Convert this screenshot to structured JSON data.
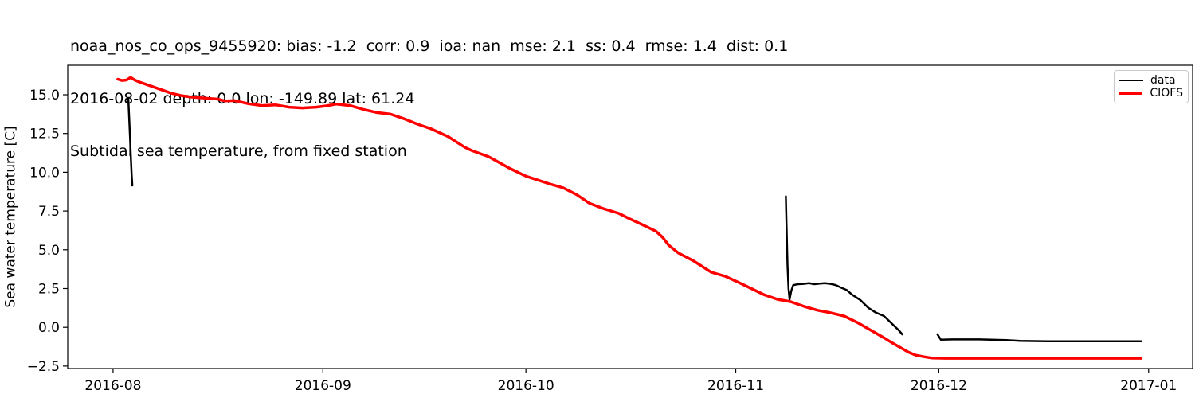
{
  "figure": {
    "title_line1": "noaa_nos_co_ops_9455920: bias: -1.2  corr: 0.9  ioa: nan  mse: 2.1  ss: 0.4  rmse: 1.4  dist: 0.1",
    "title_line2": "2016-08-02 depth: 0.0 lon: -149.89 lat: 61.24",
    "title_line3": "Subtidal sea temperature, from fixed station"
  },
  "chart_data": {
    "type": "line",
    "title": "noaa_nos_co_ops_9455920: bias: -1.2  corr: 0.9  ioa: nan  mse: 2.1  ss: 0.4  rmse: 1.4  dist: 0.1",
    "subtitle": "2016-08-02 depth: 0.0 lon: -149.89 lat: 61.24",
    "subtitle2": "Subtidal sea temperature, from fixed station",
    "xlabel": "",
    "ylabel": "Sea water temperature [C]",
    "grid": false,
    "x_unit": "days since 2016-08-01",
    "xlim_days": [
      -6.7,
      159.5
    ],
    "ylim": [
      -2.66,
      16.9
    ],
    "x_ticks": [
      {
        "label": "2016-08",
        "day": 0
      },
      {
        "label": "2016-09",
        "day": 31
      },
      {
        "label": "2016-10",
        "day": 61
      },
      {
        "label": "2016-11",
        "day": 92
      },
      {
        "label": "2016-12",
        "day": 122
      },
      {
        "label": "2017-01",
        "day": 153
      }
    ],
    "y_ticks": [
      {
        "value": -2.5,
        "label": "−2.5"
      },
      {
        "value": 0.0,
        "label": "0.0"
      },
      {
        "value": 2.5,
        "label": "2.5"
      },
      {
        "value": 5.0,
        "label": "5.0"
      },
      {
        "value": 7.5,
        "label": "7.5"
      },
      {
        "value": 10.0,
        "label": "10.0"
      },
      {
        "value": 12.5,
        "label": "12.5"
      },
      {
        "value": 15.0,
        "label": "15.0"
      }
    ],
    "legend": {
      "position": "upper right",
      "entries": [
        {
          "label": "data",
          "color": "#000000"
        },
        {
          "label": "CIOFS",
          "color": "#ff0000"
        }
      ]
    },
    "series": [
      {
        "name": "data",
        "color": "#000000",
        "line_width": 2.5,
        "segments": [
          [
            [
              2.25,
              14.8
            ],
            [
              2.35,
              13.8
            ],
            [
              2.5,
              12.3
            ],
            [
              2.65,
              10.8
            ],
            [
              2.75,
              9.8
            ],
            [
              2.85,
              9.15
            ]
          ],
          [
            [
              99.4,
              8.45
            ],
            [
              99.5,
              6.5
            ],
            [
              99.65,
              4.0
            ],
            [
              99.8,
              2.5
            ],
            [
              99.95,
              1.8
            ],
            [
              100.2,
              2.35
            ],
            [
              100.5,
              2.72
            ],
            [
              101.2,
              2.78
            ],
            [
              102,
              2.8
            ],
            [
              102.8,
              2.85
            ],
            [
              103.6,
              2.78
            ],
            [
              104.4,
              2.82
            ],
            [
              105.2,
              2.85
            ],
            [
              106,
              2.8
            ],
            [
              106.8,
              2.72
            ],
            [
              107.6,
              2.55
            ],
            [
              108.4,
              2.4
            ],
            [
              109.2,
              2.1
            ],
            [
              110.4,
              1.76
            ],
            [
              111.6,
              1.25
            ],
            [
              112.7,
              0.95
            ],
            [
              113.9,
              0.73
            ],
            [
              115.1,
              0.22
            ],
            [
              116,
              -0.15
            ],
            [
              116.6,
              -0.45
            ]
          ],
          [
            [
              121.8,
              -0.45
            ],
            [
              122.3,
              -0.8
            ],
            [
              124,
              -0.78
            ],
            [
              128,
              -0.78
            ],
            [
              132,
              -0.82
            ],
            [
              134,
              -0.88
            ],
            [
              138,
              -0.9
            ],
            [
              145,
              -0.9
            ],
            [
              151.9,
              -0.9
            ]
          ]
        ]
      },
      {
        "name": "CIOFS",
        "color": "#ff0000",
        "line_width": 3.5,
        "segments": [
          [
            [
              0.7,
              16.0
            ],
            [
              1.3,
              15.92
            ],
            [
              2.0,
              15.95
            ],
            [
              2.6,
              16.12
            ],
            [
              3.2,
              15.95
            ],
            [
              4,
              15.8
            ],
            [
              5,
              15.65
            ],
            [
              6,
              15.5
            ],
            [
              7.3,
              15.3
            ],
            [
              8.6,
              15.1
            ],
            [
              10,
              14.95
            ],
            [
              11.5,
              14.85
            ],
            [
              13,
              14.8
            ],
            [
              14.5,
              14.75
            ],
            [
              15.5,
              14.72
            ],
            [
              16.5,
              14.6
            ],
            [
              18,
              14.62
            ],
            [
              20,
              14.42
            ],
            [
              22,
              14.3
            ],
            [
              24,
              14.35
            ],
            [
              26,
              14.2
            ],
            [
              28,
              14.15
            ],
            [
              30,
              14.2
            ],
            [
              31.5,
              14.28
            ],
            [
              33,
              14.4
            ],
            [
              35,
              14.3
            ],
            [
              37,
              14.05
            ],
            [
              39,
              13.85
            ],
            [
              41,
              13.75
            ],
            [
              43,
              13.45
            ],
            [
              45,
              13.1
            ],
            [
              47,
              12.8
            ],
            [
              49.5,
              12.3
            ],
            [
              52,
              11.6
            ],
            [
              53,
              11.4
            ],
            [
              55.5,
              11.0
            ],
            [
              58.6,
              10.25
            ],
            [
              61,
              9.75
            ],
            [
              64.5,
              9.25
            ],
            [
              66.5,
              9.0
            ],
            [
              68.5,
              8.55
            ],
            [
              70.4,
              8.0
            ],
            [
              72.5,
              7.65
            ],
            [
              74.7,
              7.35
            ],
            [
              76.3,
              7.0
            ],
            [
              78.3,
              6.6
            ],
            [
              80.2,
              6.2
            ],
            [
              81.2,
              5.8
            ],
            [
              82.1,
              5.3
            ],
            [
              83.5,
              4.8
            ],
            [
              85.7,
              4.3
            ],
            [
              88.4,
              3.55
            ],
            [
              90.4,
              3.3
            ],
            [
              92.4,
              2.9
            ],
            [
              94.3,
              2.5
            ],
            [
              96.2,
              2.1
            ],
            [
              98.2,
              1.8
            ],
            [
              100.1,
              1.65
            ],
            [
              102.1,
              1.35
            ],
            [
              104.1,
              1.1
            ],
            [
              106,
              0.94
            ],
            [
              108,
              0.73
            ],
            [
              110,
              0.3
            ],
            [
              112,
              -0.2
            ],
            [
              114,
              -0.7
            ],
            [
              115.1,
              -1.0
            ],
            [
              116.3,
              -1.3
            ],
            [
              117.5,
              -1.6
            ],
            [
              118.6,
              -1.8
            ],
            [
              119.8,
              -1.9
            ],
            [
              121,
              -1.98
            ],
            [
              123,
              -2.0
            ],
            [
              151.9,
              -2.0
            ]
          ]
        ]
      }
    ]
  }
}
